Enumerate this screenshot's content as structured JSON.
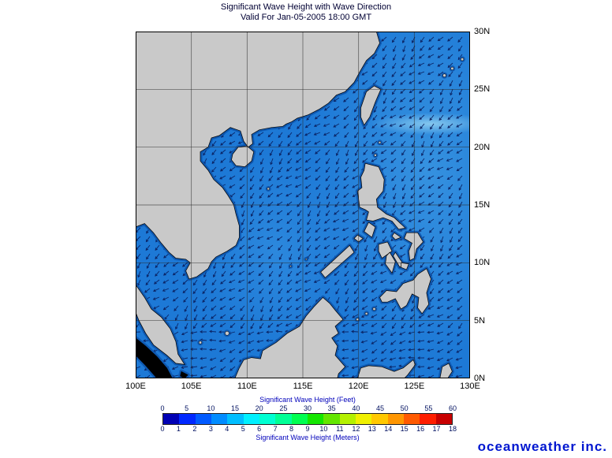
{
  "title": {
    "line1": "Significant Wave Height with Wave Direction",
    "line2": "Valid For Jan-05-2005 18:00 GMT"
  },
  "axes": {
    "lon_labels": [
      "100E",
      "105E",
      "110E",
      "115E",
      "120E",
      "125E",
      "130E"
    ],
    "lat_labels": [
      "30N",
      "25N",
      "20N",
      "15N",
      "10N",
      "5N",
      "0N"
    ]
  },
  "legend": {
    "feet_title": "Significant Wave Height (Feet)",
    "meters_title": "Significant Wave Height (Meters)",
    "feet_ticks": [
      "0",
      "5",
      "10",
      "15",
      "20",
      "25",
      "30",
      "35",
      "40",
      "45",
      "50",
      "55",
      "60"
    ],
    "meters_ticks": [
      "0",
      "1",
      "2",
      "3",
      "4",
      "5",
      "6",
      "7",
      "8",
      "9",
      "10",
      "11",
      "12",
      "13",
      "14",
      "15",
      "16",
      "17",
      "18"
    ],
    "colors": [
      "#0000b4",
      "#0028ff",
      "#005aff",
      "#008cff",
      "#00beff",
      "#00f0ff",
      "#00ffd2",
      "#00ff96",
      "#00ff50",
      "#14e600",
      "#64e600",
      "#b4f000",
      "#f0f000",
      "#ffc800",
      "#ff9600",
      "#ff5a00",
      "#ff1e00",
      "#c80000"
    ]
  },
  "map": {
    "ocean_color": "#1d79d6",
    "land_color": "#c9c9c9",
    "shallow_mask_color": "#000000",
    "coast_halo_color": "#0d55ae",
    "arrow_color": "#0a2060",
    "grid_color": "#2b2b2b",
    "wave_direction_deg": 225
  },
  "logo": {
    "text": "oceanweather inc."
  }
}
